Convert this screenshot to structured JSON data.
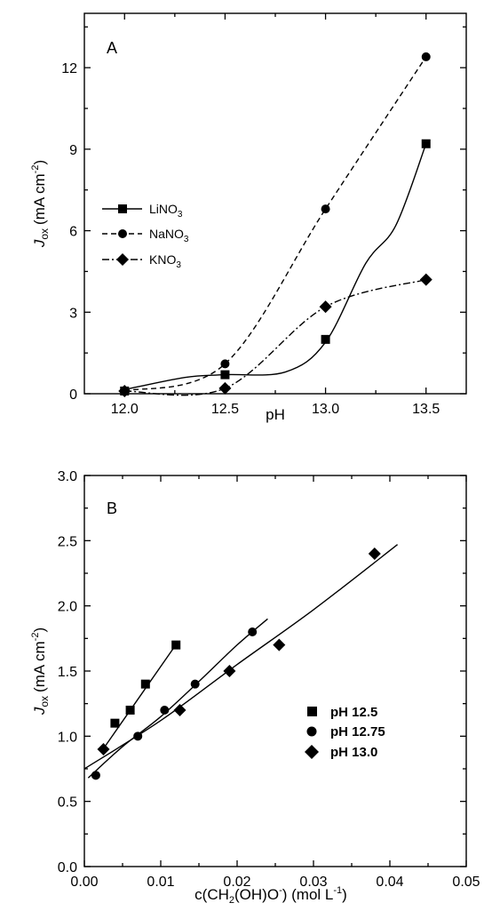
{
  "chart_data": [
    {
      "type": "line",
      "panel_label": "A",
      "xlabel": "pH",
      "ylabel_main": "J",
      "ylabel_sub": "ox",
      "ylabel_unit": "(mA cm",
      "ylabel_exp": "-2",
      "ylabel_close": ")",
      "xlim": [
        11.8,
        13.7
      ],
      "ylim": [
        0,
        14
      ],
      "xticks": [
        12.0,
        12.5,
        13.0,
        13.5
      ],
      "xtick_labels": [
        "12.0",
        "12.5",
        "13.0",
        "13.5"
      ],
      "yticks": [
        0,
        3,
        6,
        9,
        12
      ],
      "ytick_labels": [
        "0",
        "3",
        "6",
        "9",
        "12"
      ],
      "legend_position": "center-left",
      "series": [
        {
          "name": "LiNO3",
          "name_main": "LiNO",
          "name_sub": "3",
          "marker": "square",
          "line": "solid",
          "x": [
            12.0,
            12.5,
            13.0,
            13.5
          ],
          "y": [
            0.1,
            0.7,
            2.0,
            9.2
          ],
          "curve_x": [
            12.0,
            12.3,
            12.5,
            12.8,
            13.0,
            13.2,
            13.35,
            13.5
          ],
          "curve_y": [
            0.15,
            0.6,
            0.7,
            0.8,
            1.9,
            4.8,
            6.2,
            9.2
          ]
        },
        {
          "name": "NaNO3",
          "name_main": "NaNO",
          "name_sub": "3",
          "marker": "circle",
          "line": "dashed",
          "x": [
            12.0,
            12.5,
            13.0,
            13.5
          ],
          "y": [
            0.1,
            1.1,
            6.8,
            12.4
          ],
          "curve_x": [
            12.0,
            12.5,
            13.0,
            13.5
          ],
          "curve_y": [
            0.1,
            1.1,
            6.8,
            12.4
          ]
        },
        {
          "name": "KNO3",
          "name_main": "KNO",
          "name_sub": "3",
          "marker": "diamond",
          "line": "dashdot",
          "x": [
            12.0,
            12.5,
            13.0,
            13.5
          ],
          "y": [
            0.1,
            0.2,
            3.2,
            4.2
          ],
          "curve_x": [
            12.0,
            12.5,
            13.0,
            13.5
          ],
          "curve_y": [
            0.1,
            0.2,
            3.2,
            4.2
          ]
        }
      ]
    },
    {
      "type": "scatter",
      "panel_label": "B",
      "xlabel_pre": "c(CH",
      "xlabel_sub": "2",
      "xlabel_mid": "(OH)O",
      "xlabel_sup": "-",
      "xlabel_unit": ") (mol L",
      "xlabel_unit_exp": "-1",
      "xlabel_close": ")",
      "ylabel_main": "J",
      "ylabel_sub": "ox",
      "ylabel_unit": "(mA cm",
      "ylabel_exp": "-2",
      "ylabel_close": ")",
      "xlim": [
        0.0,
        0.05
      ],
      "ylim": [
        0.0,
        3.0
      ],
      "xticks": [
        0.0,
        0.01,
        0.02,
        0.03,
        0.04,
        0.05
      ],
      "xtick_labels": [
        "0.00",
        "0.01",
        "0.02",
        "0.03",
        "0.04",
        "0.05"
      ],
      "yticks": [
        0.0,
        0.5,
        1.0,
        1.5,
        2.0,
        2.5,
        3.0
      ],
      "ytick_labels": [
        "0.0",
        "0.5",
        "1.0",
        "1.5",
        "2.0",
        "2.5",
        "3.0"
      ],
      "legend_position": "center-right",
      "series": [
        {
          "name": "pH 12.5",
          "marker": "square",
          "x": [
            0.004,
            0.006,
            0.008,
            0.012
          ],
          "y": [
            1.1,
            1.2,
            1.4,
            1.7
          ],
          "fit": [
            0.0028,
            0.93,
            0.0122,
            1.72
          ]
        },
        {
          "name": "pH 12.75",
          "marker": "circle",
          "x": [
            0.0015,
            0.007,
            0.0105,
            0.0145,
            0.022
          ],
          "y": [
            0.7,
            1.0,
            1.2,
            1.4,
            1.8
          ],
          "fit_x": [
            0.0005,
            0.005,
            0.01,
            0.015,
            0.02,
            0.024
          ],
          "fit_y": [
            0.68,
            0.92,
            1.15,
            1.42,
            1.7,
            1.9
          ]
        },
        {
          "name": "pH 13.0",
          "marker": "diamond",
          "x": [
            0.0025,
            0.0125,
            0.019,
            0.0255,
            0.038
          ],
          "y": [
            0.9,
            1.2,
            1.5,
            1.7,
            2.4
          ],
          "fit_x": [
            0.0,
            0.01,
            0.02,
            0.03,
            0.041
          ],
          "fit_y": [
            0.75,
            1.12,
            1.55,
            1.97,
            2.47
          ]
        }
      ]
    }
  ]
}
